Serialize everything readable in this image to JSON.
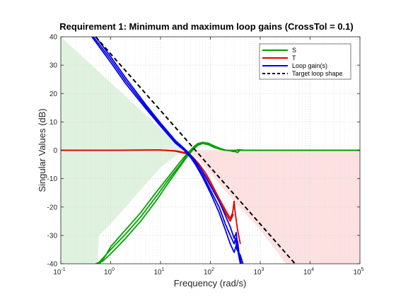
{
  "chart_data": {
    "type": "line",
    "title": "Requirement 1: Minimum and maximum loop gains (CrossTol = 0.1)",
    "xlabel": "Frequency (rad/s)",
    "ylabel": "Singular Values (dB)",
    "xscale": "log",
    "xlim": [
      0.1,
      100000
    ],
    "ylim": [
      -40,
      40
    ],
    "grid": true,
    "legend_position": "top-right",
    "x_ticks": [
      {
        "value": 0.1,
        "base": "10",
        "exp": "-1"
      },
      {
        "value": 1,
        "base": "10",
        "exp": "0"
      },
      {
        "value": 10,
        "base": "10",
        "exp": "1"
      },
      {
        "value": 100,
        "base": "10",
        "exp": "2"
      },
      {
        "value": 1000,
        "base": "10",
        "exp": "3"
      },
      {
        "value": 10000,
        "base": "10",
        "exp": "4"
      },
      {
        "value": 100000,
        "base": "10",
        "exp": "5"
      }
    ],
    "y_ticks": [
      -40,
      -30,
      -20,
      -10,
      0,
      10,
      20,
      30,
      40
    ],
    "regions": [
      {
        "name": "min-gain-region",
        "color": "#dff2df",
        "vertices": [
          [
            0.1,
            40
          ],
          [
            0.1,
            -40
          ],
          [
            0.55,
            -40
          ],
          [
            0.58,
            -30
          ],
          [
            1.0,
            -26
          ],
          [
            2.0,
            -20
          ],
          [
            5.0,
            -12
          ],
          [
            10.0,
            -6
          ],
          [
            20.0,
            -2
          ],
          [
            30.0,
            0
          ]
        ]
      },
      {
        "name": "max-gain-region",
        "color": "#fde1e1",
        "vertices": [
          [
            35.0,
            0
          ],
          [
            100000,
            0
          ],
          [
            100000,
            -40
          ],
          [
            3300,
            -40
          ],
          [
            1000,
            -28
          ],
          [
            300,
            -18
          ],
          [
            100,
            -8
          ],
          [
            50,
            -2
          ]
        ]
      }
    ],
    "series": [
      {
        "name": "S",
        "color": "#00a000",
        "style": "solid",
        "branches": [
          [
            [
              0.6,
              -40
            ],
            [
              0.8,
              -37
            ],
            [
              1,
              -34
            ],
            [
              2,
              -28
            ],
            [
              4,
              -22
            ],
            [
              8,
              -15
            ],
            [
              15,
              -9
            ],
            [
              25,
              -4
            ],
            [
              35,
              -1
            ],
            [
              45,
              1
            ],
            [
              55,
              2.3
            ],
            [
              70,
              2.8
            ],
            [
              90,
              2.5
            ],
            [
              120,
              1.5
            ],
            [
              160,
              0.6
            ],
            [
              200,
              0.1
            ],
            [
              250,
              -0.2
            ],
            [
              300,
              -0.5
            ],
            [
              350,
              0.2
            ],
            [
              500,
              0
            ],
            [
              1000,
              0
            ],
            [
              5000,
              0
            ],
            [
              100000,
              0
            ]
          ],
          [
            [
              0.55,
              -40
            ],
            [
              0.7,
              -38
            ],
            [
              1,
              -35
            ],
            [
              2,
              -29.5
            ],
            [
              4,
              -23.5
            ],
            [
              8,
              -16.5
            ],
            [
              15,
              -10
            ],
            [
              25,
              -5
            ],
            [
              35,
              -1.5
            ],
            [
              45,
              0.6
            ],
            [
              55,
              2
            ],
            [
              70,
              2.6
            ],
            [
              90,
              2.2
            ],
            [
              120,
              1.2
            ],
            [
              160,
              0.4
            ],
            [
              200,
              0
            ],
            [
              300,
              -0.3
            ],
            [
              350,
              -0.8
            ],
            [
              400,
              0.1
            ],
            [
              500,
              0
            ],
            [
              100000,
              0
            ]
          ],
          [
            [
              0.5,
              -40
            ],
            [
              0.7,
              -39
            ],
            [
              1,
              -36.5
            ],
            [
              2,
              -31
            ],
            [
              4,
              -25
            ],
            [
              8,
              -18
            ],
            [
              15,
              -11
            ],
            [
              25,
              -5.5
            ],
            [
              35,
              -2
            ],
            [
              45,
              0.2
            ],
            [
              55,
              1.7
            ],
            [
              70,
              2.4
            ],
            [
              90,
              2.0
            ],
            [
              120,
              1.0
            ],
            [
              160,
              0.3
            ],
            [
              200,
              0
            ],
            [
              100000,
              0
            ]
          ]
        ]
      },
      {
        "name": "T",
        "color": "#e00000",
        "style": "solid",
        "branches": [
          [
            [
              0.1,
              0
            ],
            [
              1,
              0
            ],
            [
              5,
              0.1
            ],
            [
              10,
              0.1
            ],
            [
              20,
              -0.2
            ],
            [
              35,
              -1
            ],
            [
              45,
              -2.5
            ],
            [
              60,
              -5
            ],
            [
              80,
              -8
            ],
            [
              100,
              -11
            ],
            [
              150,
              -17
            ],
            [
              200,
              -21
            ],
            [
              250,
              -24
            ],
            [
              280,
              -22
            ],
            [
              300,
              -18
            ],
            [
              310,
              -21
            ],
            [
              350,
              -28
            ],
            [
              400,
              -33
            ]
          ],
          [
            [
              0.1,
              0
            ],
            [
              1,
              0
            ],
            [
              10,
              0.1
            ],
            [
              20,
              -0.3
            ],
            [
              35,
              -1.3
            ],
            [
              45,
              -3
            ],
            [
              60,
              -5.8
            ],
            [
              80,
              -9
            ],
            [
              100,
              -12
            ],
            [
              150,
              -18
            ],
            [
              200,
              -22
            ],
            [
              250,
              -25
            ],
            [
              290,
              -22.5
            ]
          ]
        ]
      },
      {
        "name": "Loop gain(s)",
        "color": "#0000ee",
        "style": "solid",
        "branches": [
          [
            [
              0.45,
              40
            ],
            [
              1,
              32
            ],
            [
              2,
              24.5
            ],
            [
              5,
              15.5
            ],
            [
              10,
              9
            ],
            [
              20,
              3
            ],
            [
              30,
              0.3
            ],
            [
              40,
              -2
            ],
            [
              50,
              -4.5
            ],
            [
              70,
              -8.5
            ],
            [
              100,
              -14
            ],
            [
              150,
              -20
            ],
            [
              200,
              -26
            ],
            [
              250,
              -30
            ],
            [
              300,
              -33
            ],
            [
              320,
              -31
            ],
            [
              340,
              -35
            ],
            [
              400,
              -37
            ],
            [
              450,
              -40
            ]
          ],
          [
            [
              0.42,
              40
            ],
            [
              1,
              31
            ],
            [
              2,
              23.5
            ],
            [
              5,
              14.8
            ],
            [
              10,
              8.5
            ],
            [
              20,
              2.5
            ],
            [
              30,
              0
            ],
            [
              40,
              -2.5
            ],
            [
              50,
              -5
            ],
            [
              70,
              -9.5
            ],
            [
              100,
              -15
            ],
            [
              150,
              -22
            ],
            [
              200,
              -28
            ],
            [
              250,
              -33
            ],
            [
              300,
              -36
            ],
            [
              350,
              -32
            ],
            [
              380,
              -37
            ],
            [
              420,
              -40
            ]
          ],
          [
            [
              0.5,
              40
            ],
            [
              1,
              33
            ],
            [
              2,
              25.5
            ],
            [
              5,
              16.2
            ],
            [
              10,
              9.6
            ],
            [
              20,
              3.4
            ],
            [
              30,
              0.6
            ],
            [
              40,
              -1.6
            ],
            [
              50,
              -3.8
            ],
            [
              70,
              -7.5
            ],
            [
              100,
              -12.5
            ],
            [
              150,
              -18
            ],
            [
              200,
              -23
            ],
            [
              250,
              -27
            ],
            [
              300,
              -31
            ],
            [
              330,
              -29
            ],
            [
              360,
              -36
            ],
            [
              400,
              -40
            ]
          ]
        ]
      },
      {
        "name": "Target loop shape",
        "color": "#000000",
        "style": "dashed",
        "branches": [
          [
            [
              0.5,
              40
            ],
            [
              1,
              34
            ],
            [
              10,
              14
            ],
            [
              100,
              -6
            ],
            [
              1000,
              -26
            ],
            [
              5000,
              -40
            ]
          ]
        ]
      }
    ]
  }
}
